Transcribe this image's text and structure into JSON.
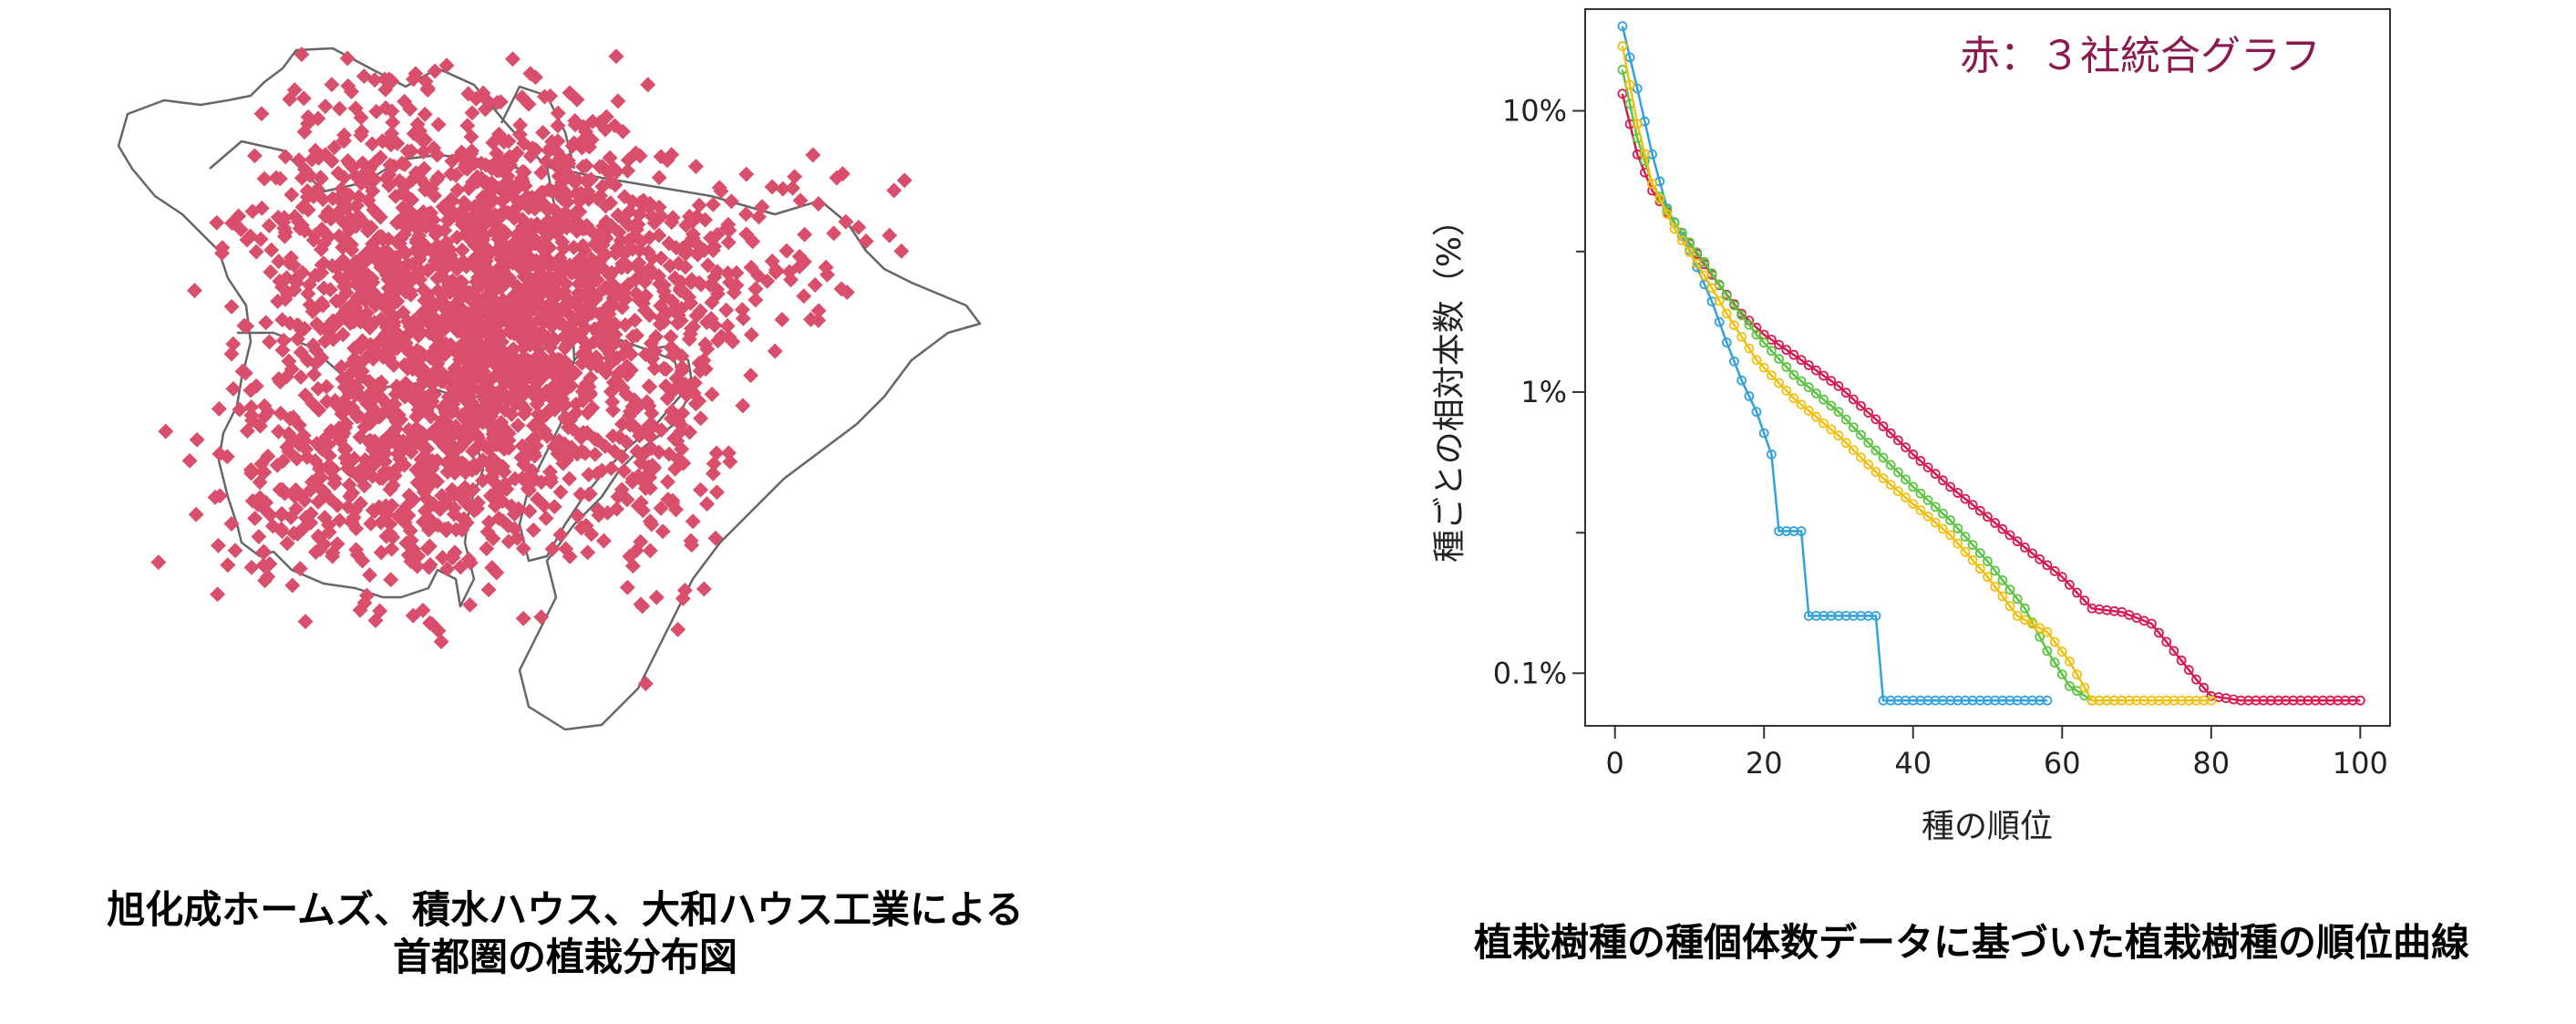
{
  "left_panel": {
    "caption_line1": "旭化成ホームズ、積水ハウス、大和ハウス工業による",
    "caption_line2": "首都圏の植栽分布図",
    "dot_color": "#d94f6b",
    "outline_color": "#666666"
  },
  "right_panel": {
    "caption": "植栽樹種の種個体数データに基づいた植栽樹種の順位曲線"
  },
  "chart_data": {
    "type": "line",
    "xlabel": "種の順位",
    "ylabel": "種ごとの相対本数（%）",
    "annotation": "赤：３社統合グラフ",
    "annotation_color": "#8b1a50",
    "y_scale": "log",
    "xlim": [
      -4,
      104
    ],
    "ylim": [
      0.065,
      23
    ],
    "x_ticks": [
      0,
      20,
      40,
      60,
      80,
      100
    ],
    "y_ticks": [
      {
        "value": 10,
        "label": "10%"
      },
      {
        "value": 1,
        "label": "1%"
      },
      {
        "value": 0.1,
        "label": "0.1%"
      }
    ],
    "y_minor_ticks": [
      3.16,
      0.316
    ],
    "grid": false,
    "series": [
      {
        "color": "#d81b50",
        "points": [
          [
            1,
            11.5
          ],
          [
            3,
            7
          ],
          [
            5,
            5.2
          ],
          [
            8,
            4
          ],
          [
            11,
            3.1
          ],
          [
            14,
            2.4
          ],
          [
            17,
            1.9
          ],
          [
            20,
            1.6
          ],
          [
            25,
            1.3
          ],
          [
            30,
            1.05
          ],
          [
            35,
            0.8
          ],
          [
            40,
            0.6
          ],
          [
            45,
            0.46
          ],
          [
            50,
            0.36
          ],
          [
            55,
            0.28
          ],
          [
            60,
            0.22
          ],
          [
            64,
            0.17
          ],
          [
            68,
            0.165
          ],
          [
            72,
            0.15
          ],
          [
            75,
            0.12
          ],
          [
            78,
            0.095
          ],
          [
            80,
            0.083
          ],
          [
            84,
            0.08
          ],
          [
            90,
            0.08
          ],
          [
            100,
            0.08
          ]
        ]
      },
      {
        "color": "#33a1db",
        "points": [
          [
            1,
            20
          ],
          [
            3,
            12
          ],
          [
            5,
            7
          ],
          [
            7,
            4.5
          ],
          [
            10,
            3.2
          ],
          [
            13,
            2.1
          ],
          [
            15,
            1.5
          ],
          [
            17,
            1.1
          ],
          [
            19,
            0.85
          ],
          [
            21,
            0.6
          ],
          [
            22,
            0.32
          ],
          [
            25,
            0.32
          ],
          [
            26,
            0.16
          ],
          [
            35,
            0.16
          ],
          [
            36,
            0.08
          ],
          [
            58,
            0.08
          ]
        ]
      },
      {
        "color": "#5dc544",
        "points": [
          [
            1,
            14
          ],
          [
            3,
            8
          ],
          [
            5,
            5.5
          ],
          [
            8,
            4
          ],
          [
            12,
            2.9
          ],
          [
            15,
            2.2
          ],
          [
            19,
            1.6
          ],
          [
            24,
            1.15
          ],
          [
            30,
            0.85
          ],
          [
            35,
            0.62
          ],
          [
            40,
            0.46
          ],
          [
            45,
            0.35
          ],
          [
            50,
            0.25
          ],
          [
            55,
            0.17
          ],
          [
            58,
            0.12
          ],
          [
            61,
            0.09
          ],
          [
            64,
            0.08
          ],
          [
            68,
            0.08
          ]
        ]
      },
      {
        "color": "#f2c012",
        "points": [
          [
            1,
            17
          ],
          [
            3,
            9
          ],
          [
            5,
            5.5
          ],
          [
            8,
            3.8
          ],
          [
            12,
            2.6
          ],
          [
            15,
            1.9
          ],
          [
            19,
            1.3
          ],
          [
            24,
            0.95
          ],
          [
            30,
            0.7
          ],
          [
            35,
            0.52
          ],
          [
            40,
            0.4
          ],
          [
            45,
            0.31
          ],
          [
            50,
            0.22
          ],
          [
            54,
            0.16
          ],
          [
            58,
            0.14
          ],
          [
            61,
            0.11
          ],
          [
            64,
            0.08
          ],
          [
            70,
            0.08
          ],
          [
            80,
            0.08
          ]
        ]
      }
    ]
  }
}
